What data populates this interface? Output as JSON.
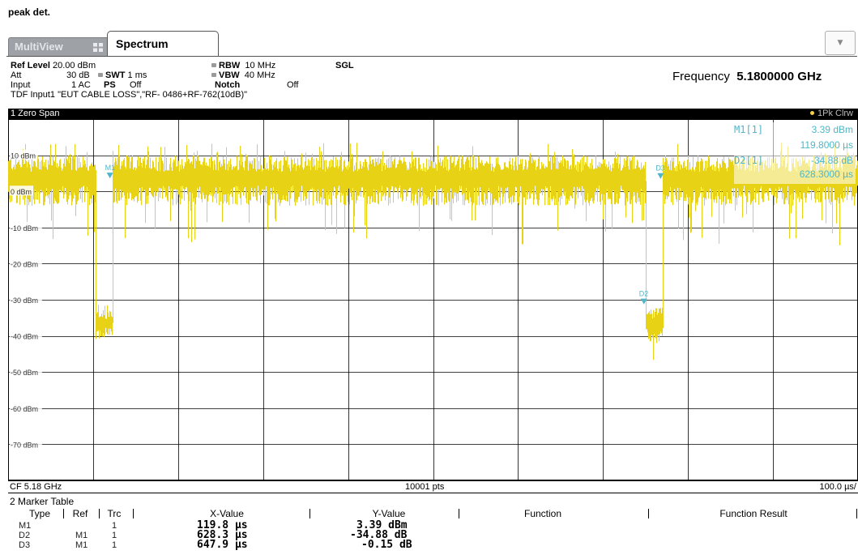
{
  "caption": "peak det.",
  "tabs": {
    "multiview": "MultiView",
    "spectrum": "Spectrum"
  },
  "settings": {
    "ref_level_label": "Ref Level",
    "ref_level_value": "20.00 dBm",
    "att_label": "Att",
    "att_value": "30 dB",
    "swt_label": "SWT",
    "swt_value": "1 ms",
    "rbw_label": "RBW",
    "rbw_value": "10 MHz",
    "vbw_label": "VBW",
    "vbw_value": "40 MHz",
    "sgl": "SGL",
    "input_label": "Input",
    "input_value": "1 AC",
    "ps_label": "PS",
    "ps_value": "Off",
    "notch_label": "Notch",
    "notch_value": "Off",
    "tdf": "TDF Input1 \"EUT CABLE LOSS\",\"RF- 0486+RF-762(10dB)\"",
    "frequency_label": "Frequency",
    "frequency_value": "5.1800000 GHz"
  },
  "window": {
    "title": "1 Zero Span",
    "trace_label": "1Pk Clrw",
    "trace_color": "#e8d216"
  },
  "marker_readout": {
    "m1_label": "M1[1]",
    "m1_level": "3.39 dBm",
    "m1_time": "119.8000 µs",
    "d2_label": "D2[1]",
    "d2_level": "-34.88 dB",
    "d2_time": "628.3000 µs"
  },
  "chart_data": {
    "type": "line",
    "xlabel": "",
    "ylabel": "",
    "x_range_us": [
      0,
      1000
    ],
    "ylim": [
      -80,
      20
    ],
    "y_tick_labels": [
      "10 dBm",
      "0 dBm",
      "-10 dBm",
      "-20 dBm",
      "-30 dBm",
      "-40 dBm",
      "-50 dBm",
      "-60 dBm",
      "-70 dBm"
    ],
    "y_ticks": [
      10,
      0,
      -10,
      -20,
      -30,
      -40,
      -50,
      -60,
      -70
    ],
    "grid": true,
    "series": [
      {
        "segments": [
          {
            "x_start": 0,
            "x_end": 103,
            "level": 3,
            "spread": 7
          },
          {
            "x_start": 103,
            "x_end": 123,
            "level": -37,
            "spread": 4
          },
          {
            "x_start": 123,
            "x_end": 750,
            "level": 3,
            "spread": 7
          },
          {
            "x_start": 750,
            "x_end": 770,
            "level": -37,
            "spread": 5
          },
          {
            "x_start": 770,
            "x_end": 1000,
            "level": 3,
            "spread": 7
          }
        ]
      }
    ],
    "markers": [
      {
        "label": "M1",
        "x": 119.8,
        "y": 3.39
      },
      {
        "label": "D2",
        "x": 748.1,
        "y": -31.49
      },
      {
        "label": "D3",
        "x": 767.7,
        "y": 3.24
      }
    ]
  },
  "footer": {
    "center_freq": "CF 5.18 GHz",
    "points": "10001 pts",
    "per_div": "100.0 µs/"
  },
  "marker_table": {
    "title": "2 Marker Table",
    "headers": [
      "Type",
      "Ref",
      "Trc",
      "X-Value",
      "Y-Value",
      "Function",
      "Function Result"
    ],
    "rows": [
      {
        "type": "M1",
        "ref": "",
        "trc": "1",
        "x": "119.8 µs",
        "y": "3.39 dBm"
      },
      {
        "type": "D2",
        "ref": "M1",
        "trc": "1",
        "x": "628.3 µs",
        "y": "-34.88 dB"
      },
      {
        "type": "D3",
        "ref": "M1",
        "trc": "1",
        "x": "647.9 µs",
        "y": "-0.15 dB"
      }
    ]
  }
}
